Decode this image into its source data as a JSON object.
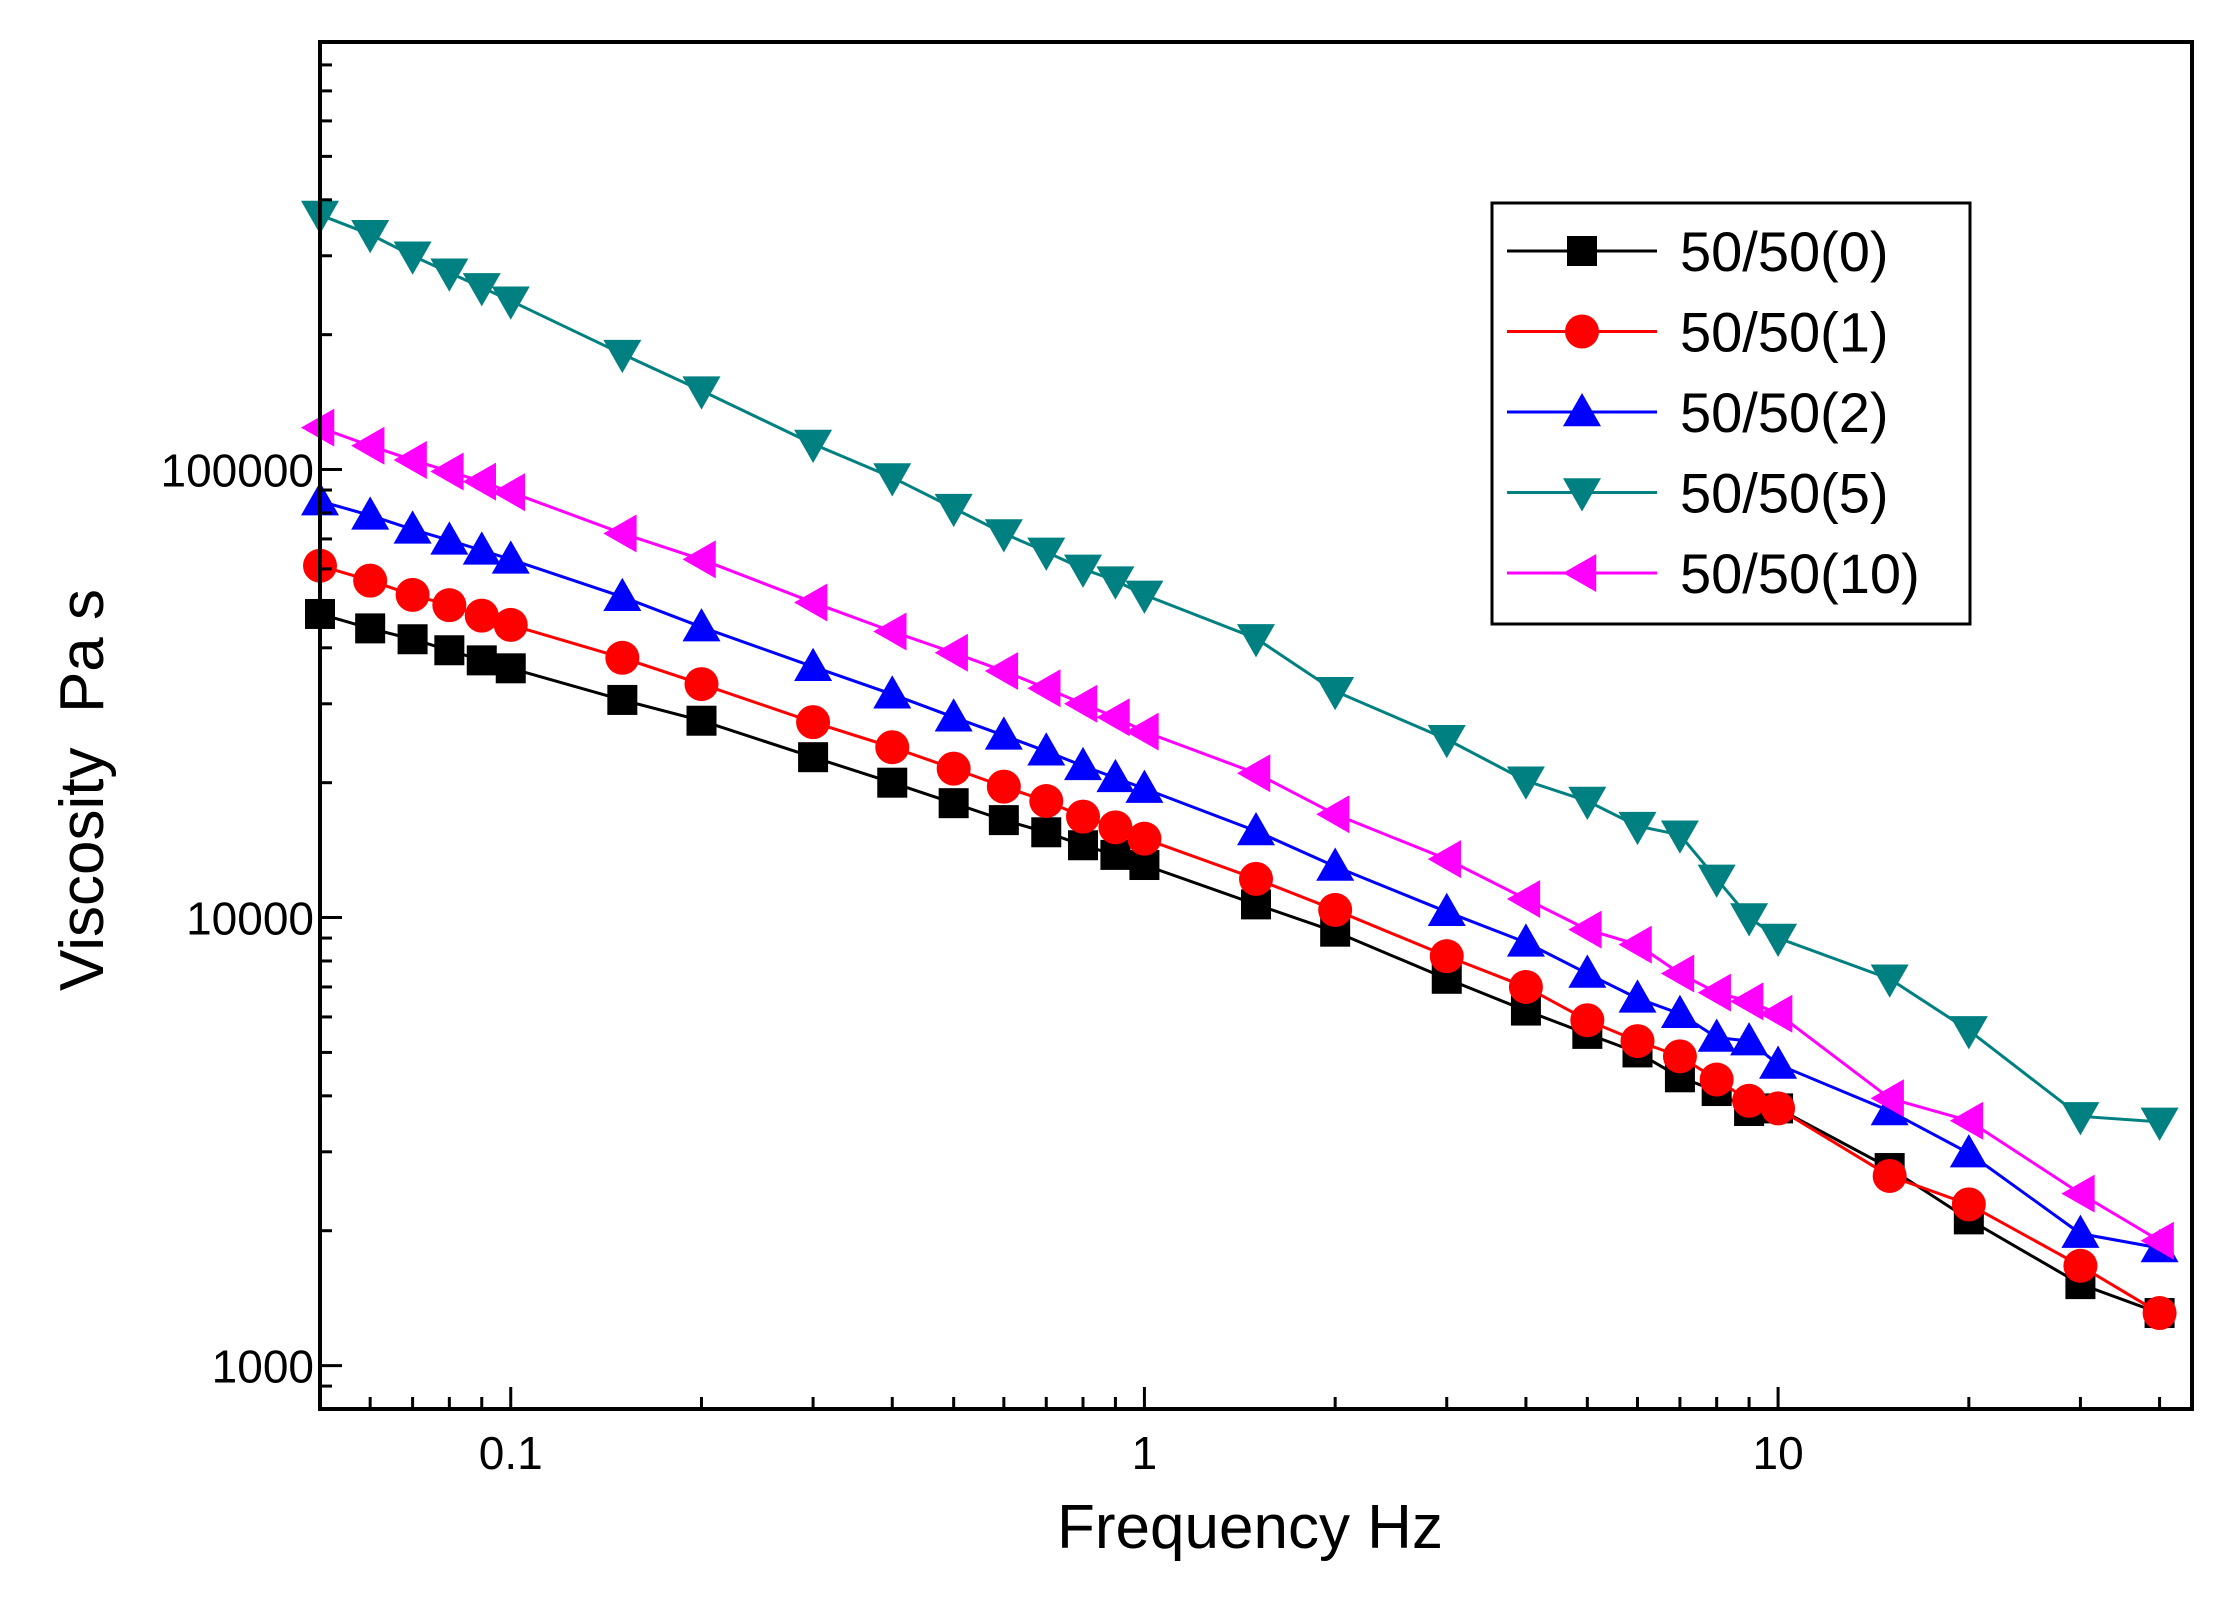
{
  "chart_data": {
    "type": "line",
    "xscale": "log",
    "yscale": "log",
    "xlabel": "Frequency Hz",
    "ylabel": "Viscosity  Pa s",
    "xlim": [
      0.05,
      45
    ],
    "ylim": [
      800,
      900000
    ],
    "xticks": [
      0.1,
      1,
      10
    ],
    "xtick_labels": [
      "0.1",
      "1",
      "10"
    ],
    "yticks": [
      1000,
      10000,
      100000
    ],
    "ytick_labels": [
      "1000",
      "10000",
      "100000"
    ],
    "grid": false,
    "legend_position": "top-right",
    "series": [
      {
        "name": "50/50(0)",
        "color": "#000000",
        "marker": "square",
        "x": [
          0.05,
          0.06,
          0.07,
          0.08,
          0.09,
          0.1,
          0.15,
          0.2,
          0.3,
          0.4,
          0.5,
          0.6,
          0.7,
          0.8,
          0.9,
          1,
          1.5,
          2,
          3,
          4,
          5,
          6,
          7,
          8,
          9,
          10,
          15,
          20,
          30,
          40
        ],
        "values": [
          47600,
          44200,
          41800,
          39500,
          37500,
          36000,
          30600,
          27500,
          22800,
          20000,
          18000,
          16500,
          15500,
          14500,
          13800,
          13100,
          10700,
          9300,
          7300,
          6200,
          5500,
          5000,
          4400,
          4100,
          3700,
          3750,
          2760,
          2120,
          1520,
          1310
        ]
      },
      {
        "name": "50/50(1)",
        "color": "#ff0000",
        "marker": "circle",
        "x": [
          0.05,
          0.06,
          0.07,
          0.08,
          0.09,
          0.1,
          0.15,
          0.2,
          0.3,
          0.4,
          0.5,
          0.6,
          0.7,
          0.8,
          0.9,
          1,
          1.5,
          2,
          3,
          4,
          5,
          6,
          7,
          8,
          9,
          10,
          15,
          20,
          30,
          40
        ],
        "values": [
          61000,
          56500,
          52500,
          49800,
          47200,
          45000,
          38000,
          33200,
          27300,
          24000,
          21500,
          19600,
          18200,
          16800,
          15900,
          15000,
          12200,
          10400,
          8200,
          7000,
          5900,
          5300,
          4900,
          4350,
          3900,
          3750,
          2650,
          2290,
          1670,
          1310
        ]
      },
      {
        "name": "50/50(2)",
        "color": "#0000ff",
        "marker": "triangle-up",
        "x": [
          0.05,
          0.06,
          0.07,
          0.08,
          0.09,
          0.1,
          0.15,
          0.2,
          0.3,
          0.4,
          0.5,
          0.6,
          0.7,
          0.8,
          0.9,
          1,
          1.5,
          2,
          3,
          4,
          5,
          6,
          7,
          8,
          9,
          10,
          15,
          20,
          30,
          40
        ],
        "values": [
          85000,
          79000,
          73500,
          69500,
          66000,
          63000,
          52000,
          44500,
          36300,
          31500,
          28000,
          25500,
          23500,
          21800,
          20500,
          19400,
          15600,
          13000,
          10300,
          8800,
          7500,
          6600,
          6100,
          5400,
          5300,
          4700,
          3700,
          2980,
          1970,
          1830
        ]
      },
      {
        "name": "50/50(5)",
        "color": "#008080",
        "marker": "triangle-down",
        "x": [
          0.05,
          0.06,
          0.07,
          0.08,
          0.09,
          0.1,
          0.15,
          0.2,
          0.3,
          0.4,
          0.5,
          0.6,
          0.7,
          0.8,
          0.9,
          1,
          1.5,
          2,
          3,
          4,
          5,
          6,
          7,
          8,
          9,
          10,
          15,
          20,
          30,
          40
        ],
        "values": [
          370000,
          335000,
          300000,
          275000,
          255000,
          238000,
          181000,
          150000,
          114000,
          96000,
          82000,
          72000,
          65500,
          60000,
          56500,
          52500,
          42000,
          32000,
          25000,
          20200,
          18200,
          16000,
          15300,
          12200,
          10000,
          9000,
          7300,
          5600,
          3600,
          3500
        ]
      },
      {
        "name": "50/50(10)",
        "color": "#ff00ff",
        "marker": "triangle-left",
        "x": [
          0.05,
          0.06,
          0.07,
          0.08,
          0.09,
          0.1,
          0.15,
          0.2,
          0.3,
          0.4,
          0.5,
          0.6,
          0.7,
          0.8,
          0.9,
          1,
          1.5,
          2,
          3,
          4,
          5,
          6,
          7,
          8,
          9,
          10,
          15,
          20,
          30,
          40
        ],
        "values": [
          124000,
          113000,
          105000,
          99000,
          94000,
          89000,
          72000,
          63000,
          50500,
          43500,
          39000,
          35500,
          32500,
          30000,
          28000,
          26000,
          21000,
          17000,
          13500,
          11000,
          9400,
          8700,
          7500,
          6800,
          6500,
          6100,
          3950,
          3520,
          2420,
          1900
        ]
      }
    ]
  }
}
